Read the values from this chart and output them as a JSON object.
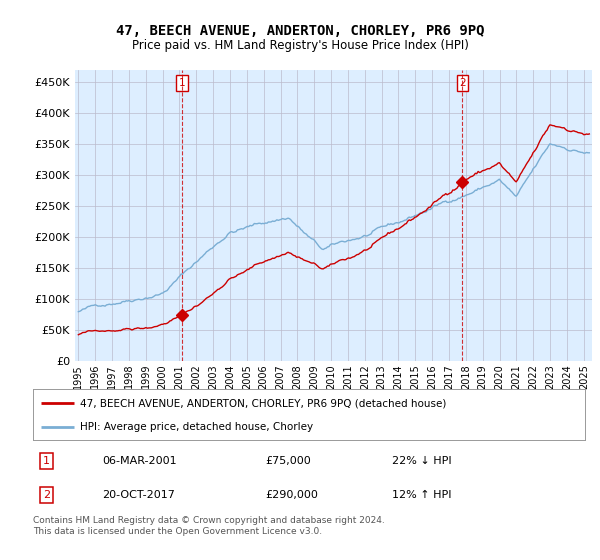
{
  "title": "47, BEECH AVENUE, ANDERTON, CHORLEY, PR6 9PQ",
  "subtitle": "Price paid vs. HM Land Registry's House Price Index (HPI)",
  "legend_label_red": "47, BEECH AVENUE, ANDERTON, CHORLEY, PR6 9PQ (detached house)",
  "legend_label_blue": "HPI: Average price, detached house, Chorley",
  "transaction1_date": "06-MAR-2001",
  "transaction1_price": "£75,000",
  "transaction1_hpi": "22% ↓ HPI",
  "transaction2_date": "20-OCT-2017",
  "transaction2_price": "£290,000",
  "transaction2_hpi": "12% ↑ HPI",
  "footnote": "Contains HM Land Registry data © Crown copyright and database right 2024.\nThis data is licensed under the Open Government Licence v3.0.",
  "vline1_x": 2001.17,
  "vline2_x": 2017.8,
  "marker1_x": 2001.17,
  "marker1_y": 75000,
  "marker2_x": 2017.8,
  "marker2_y": 290000,
  "ylim": [
    0,
    470000
  ],
  "xlim_start": 1994.8,
  "xlim_end": 2025.5,
  "red_color": "#cc0000",
  "blue_color": "#7aaed4",
  "vline_color": "#cc0000",
  "bg_color": "#ffffff",
  "chart_bg_color": "#ddeeff",
  "grid_color": "#bbbbcc"
}
